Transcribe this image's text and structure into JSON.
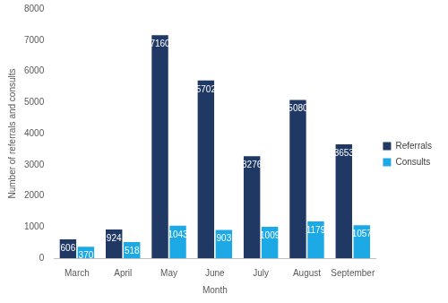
{
  "chart_data": {
    "type": "bar",
    "x_label": "Month",
    "y_label": "Number of referrals and consults",
    "categories": [
      "March",
      "April",
      "May",
      "June",
      "July",
      "August",
      "September"
    ],
    "series": [
      {
        "name": "Referrals",
        "color": "#1f3864",
        "values": [
          606,
          924,
          7160,
          5702,
          3276,
          5080,
          3653
        ]
      },
      {
        "name": "Consults",
        "color": "#1ca9e6",
        "values": [
          370,
          518,
          1043,
          903,
          1009,
          1179,
          1057
        ]
      }
    ],
    "ylim": [
      0,
      8000
    ],
    "yticks": [
      0,
      1000,
      2000,
      3000,
      4000,
      5000,
      6000,
      7000,
      8000
    ],
    "grid": false,
    "legend": "right",
    "data_labels": true
  }
}
